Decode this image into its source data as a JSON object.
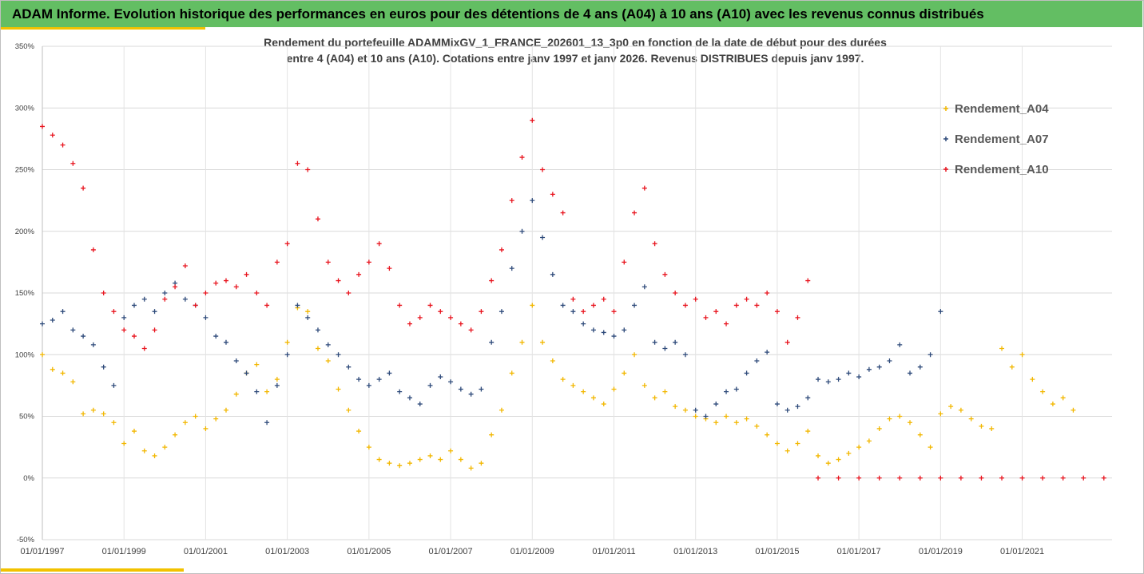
{
  "banner": {
    "title": "ADAM Informe. Evolution historique des performances en euros pour des détentions de 4 ans (A04) à 10 ans (A10) avec les revenus connus distribués"
  },
  "colors": {
    "banner": "#63be63",
    "accent": "#f2c200",
    "A04": "#f2b700",
    "A07": "#2e4a7a",
    "A10": "#e8141e"
  },
  "chart_data": {
    "type": "scatter",
    "title_line1": "Rendement du portefeuille ADAMMixGV_1_FRANCE_202601_13_3p0 en fonction de la date de début pour des durées",
    "title_line2": "entre 4 (A04) et 10 ans (A10). Cotations entre janv 1997 et janv 2026. Revenus DISTRIBUES depuis janv 1997.",
    "x_range": [
      1997.0,
      2023.2
    ],
    "y_range": [
      -50,
      350
    ],
    "y_ticks": [
      "-50%",
      "0%",
      "50%",
      "100%",
      "150%",
      "200%",
      "250%",
      "300%",
      "350%"
    ],
    "y_tick_values": [
      -50,
      0,
      50,
      100,
      150,
      200,
      250,
      300,
      350
    ],
    "x_ticks": [
      "01/01/1997",
      "01/01/1999",
      "01/01/2001",
      "01/01/2003",
      "01/01/2005",
      "01/01/2007",
      "01/01/2009",
      "01/01/2011",
      "01/01/2013",
      "01/01/2015",
      "01/01/2017",
      "01/01/2019",
      "01/01/2021"
    ],
    "x_tick_values": [
      1997,
      1999,
      2001,
      2003,
      2005,
      2007,
      2009,
      2011,
      2013,
      2015,
      2017,
      2019,
      2021
    ],
    "legend_position": "right",
    "series": [
      {
        "name": "Rendement_A04",
        "key": "A04",
        "points": [
          [
            1997.0,
            100
          ],
          [
            1997.25,
            88
          ],
          [
            1997.5,
            85
          ],
          [
            1997.75,
            78
          ],
          [
            1998.0,
            52
          ],
          [
            1998.25,
            55
          ],
          [
            1998.5,
            52
          ],
          [
            1998.75,
            45
          ],
          [
            1999.0,
            28
          ],
          [
            1999.25,
            38
          ],
          [
            1999.5,
            22
          ],
          [
            1999.75,
            18
          ],
          [
            2000.0,
            25
          ],
          [
            2000.25,
            35
          ],
          [
            2000.5,
            45
          ],
          [
            2000.75,
            50
          ],
          [
            2001.0,
            40
          ],
          [
            2001.25,
            48
          ],
          [
            2001.5,
            55
          ],
          [
            2001.75,
            68
          ],
          [
            2002.0,
            85
          ],
          [
            2002.25,
            92
          ],
          [
            2002.5,
            70
          ],
          [
            2002.75,
            80
          ],
          [
            2003.0,
            110
          ],
          [
            2003.25,
            138
          ],
          [
            2003.5,
            135
          ],
          [
            2003.75,
            105
          ],
          [
            2004.0,
            95
          ],
          [
            2004.25,
            72
          ],
          [
            2004.5,
            55
          ],
          [
            2004.75,
            38
          ],
          [
            2005.0,
            25
          ],
          [
            2005.25,
            15
          ],
          [
            2005.5,
            12
          ],
          [
            2005.75,
            10
          ],
          [
            2006.0,
            12
          ],
          [
            2006.25,
            15
          ],
          [
            2006.5,
            18
          ],
          [
            2006.75,
            15
          ],
          [
            2007.0,
            22
          ],
          [
            2007.25,
            15
          ],
          [
            2007.5,
            8
          ],
          [
            2007.75,
            12
          ],
          [
            2008.0,
            35
          ],
          [
            2008.25,
            55
          ],
          [
            2008.5,
            85
          ],
          [
            2008.75,
            110
          ],
          [
            2009.0,
            140
          ],
          [
            2009.25,
            110
          ],
          [
            2009.5,
            95
          ],
          [
            2009.75,
            80
          ],
          [
            2010.0,
            75
          ],
          [
            2010.25,
            70
          ],
          [
            2010.5,
            65
          ],
          [
            2010.75,
            60
          ],
          [
            2011.0,
            72
          ],
          [
            2011.25,
            85
          ],
          [
            2011.5,
            100
          ],
          [
            2011.75,
            75
          ],
          [
            2012.0,
            65
          ],
          [
            2012.25,
            70
          ],
          [
            2012.5,
            58
          ],
          [
            2012.75,
            55
          ],
          [
            2013.0,
            50
          ],
          [
            2013.25,
            48
          ],
          [
            2013.5,
            45
          ],
          [
            2013.75,
            50
          ],
          [
            2014.0,
            45
          ],
          [
            2014.25,
            48
          ],
          [
            2014.5,
            42
          ],
          [
            2014.75,
            35
          ],
          [
            2015.0,
            28
          ],
          [
            2015.25,
            22
          ],
          [
            2015.5,
            28
          ],
          [
            2015.75,
            38
          ],
          [
            2016.0,
            18
          ],
          [
            2016.25,
            12
          ],
          [
            2016.5,
            15
          ],
          [
            2016.75,
            20
          ],
          [
            2017.0,
            25
          ],
          [
            2017.25,
            30
          ],
          [
            2017.5,
            40
          ],
          [
            2017.75,
            48
          ],
          [
            2018.0,
            50
          ],
          [
            2018.25,
            45
          ],
          [
            2018.5,
            35
          ],
          [
            2018.75,
            25
          ],
          [
            2019.0,
            52
          ],
          [
            2019.25,
            58
          ],
          [
            2019.5,
            55
          ],
          [
            2019.75,
            48
          ],
          [
            2020.0,
            42
          ],
          [
            2020.25,
            40
          ],
          [
            2020.5,
            105
          ],
          [
            2020.75,
            90
          ],
          [
            2021.0,
            100
          ],
          [
            2021.25,
            80
          ],
          [
            2021.5,
            70
          ],
          [
            2021.75,
            60
          ],
          [
            2022.0,
            65
          ],
          [
            2022.25,
            55
          ]
        ]
      },
      {
        "name": "Rendement_A07",
        "key": "A07",
        "points": [
          [
            1997.0,
            125
          ],
          [
            1997.25,
            128
          ],
          [
            1997.5,
            135
          ],
          [
            1997.75,
            120
          ],
          [
            1998.0,
            115
          ],
          [
            1998.25,
            108
          ],
          [
            1998.5,
            90
          ],
          [
            1998.75,
            75
          ],
          [
            1999.0,
            130
          ],
          [
            1999.25,
            140
          ],
          [
            1999.5,
            145
          ],
          [
            1999.75,
            135
          ],
          [
            2000.0,
            150
          ],
          [
            2000.25,
            158
          ],
          [
            2000.5,
            145
          ],
          [
            2000.75,
            140
          ],
          [
            2001.0,
            130
          ],
          [
            2001.25,
            115
          ],
          [
            2001.5,
            110
          ],
          [
            2001.75,
            95
          ],
          [
            2002.0,
            85
          ],
          [
            2002.25,
            70
          ],
          [
            2002.5,
            45
          ],
          [
            2002.75,
            75
          ],
          [
            2003.0,
            100
          ],
          [
            2003.25,
            140
          ],
          [
            2003.5,
            130
          ],
          [
            2003.75,
            120
          ],
          [
            2004.0,
            108
          ],
          [
            2004.25,
            100
          ],
          [
            2004.5,
            90
          ],
          [
            2004.75,
            80
          ],
          [
            2005.0,
            75
          ],
          [
            2005.25,
            80
          ],
          [
            2005.5,
            85
          ],
          [
            2005.75,
            70
          ],
          [
            2006.0,
            65
          ],
          [
            2006.25,
            60
          ],
          [
            2006.5,
            75
          ],
          [
            2006.75,
            82
          ],
          [
            2007.0,
            78
          ],
          [
            2007.25,
            72
          ],
          [
            2007.5,
            68
          ],
          [
            2007.75,
            72
          ],
          [
            2008.0,
            110
          ],
          [
            2008.25,
            135
          ],
          [
            2008.5,
            170
          ],
          [
            2008.75,
            200
          ],
          [
            2009.0,
            225
          ],
          [
            2009.25,
            195
          ],
          [
            2009.5,
            165
          ],
          [
            2009.75,
            140
          ],
          [
            2010.0,
            135
          ],
          [
            2010.25,
            125
          ],
          [
            2010.5,
            120
          ],
          [
            2010.75,
            118
          ],
          [
            2011.0,
            115
          ],
          [
            2011.25,
            120
          ],
          [
            2011.5,
            140
          ],
          [
            2011.75,
            155
          ],
          [
            2012.0,
            110
          ],
          [
            2012.25,
            105
          ],
          [
            2012.5,
            110
          ],
          [
            2012.75,
            100
          ],
          [
            2013.0,
            55
          ],
          [
            2013.25,
            50
          ],
          [
            2013.5,
            60
          ],
          [
            2013.75,
            70
          ],
          [
            2014.0,
            72
          ],
          [
            2014.25,
            85
          ],
          [
            2014.5,
            95
          ],
          [
            2014.75,
            102
          ],
          [
            2015.0,
            60
          ],
          [
            2015.25,
            55
          ],
          [
            2015.5,
            58
          ],
          [
            2015.75,
            65
          ],
          [
            2016.0,
            80
          ],
          [
            2016.25,
            78
          ],
          [
            2016.5,
            80
          ],
          [
            2016.75,
            85
          ],
          [
            2017.0,
            82
          ],
          [
            2017.25,
            88
          ],
          [
            2017.5,
            90
          ],
          [
            2017.75,
            95
          ],
          [
            2018.0,
            108
          ],
          [
            2018.25,
            85
          ],
          [
            2018.5,
            90
          ],
          [
            2018.75,
            100
          ],
          [
            2019.0,
            135
          ]
        ]
      },
      {
        "name": "Rendement_A10",
        "key": "A10",
        "points": [
          [
            1997.0,
            285
          ],
          [
            1997.25,
            278
          ],
          [
            1997.5,
            270
          ],
          [
            1997.75,
            255
          ],
          [
            1998.0,
            235
          ],
          [
            1998.25,
            185
          ],
          [
            1998.5,
            150
          ],
          [
            1998.75,
            135
          ],
          [
            1999.0,
            120
          ],
          [
            1999.25,
            115
          ],
          [
            1999.5,
            105
          ],
          [
            1999.75,
            120
          ],
          [
            2000.0,
            145
          ],
          [
            2000.25,
            155
          ],
          [
            2000.5,
            172
          ],
          [
            2000.75,
            140
          ],
          [
            2001.0,
            150
          ],
          [
            2001.25,
            158
          ],
          [
            2001.5,
            160
          ],
          [
            2001.75,
            155
          ],
          [
            2002.0,
            165
          ],
          [
            2002.25,
            150
          ],
          [
            2002.5,
            140
          ],
          [
            2002.75,
            175
          ],
          [
            2003.0,
            190
          ],
          [
            2003.25,
            255
          ],
          [
            2003.5,
            250
          ],
          [
            2003.75,
            210
          ],
          [
            2004.0,
            175
          ],
          [
            2004.25,
            160
          ],
          [
            2004.5,
            150
          ],
          [
            2004.75,
            165
          ],
          [
            2005.0,
            175
          ],
          [
            2005.25,
            190
          ],
          [
            2005.5,
            170
          ],
          [
            2005.75,
            140
          ],
          [
            2006.0,
            125
          ],
          [
            2006.25,
            130
          ],
          [
            2006.5,
            140
          ],
          [
            2006.75,
            135
          ],
          [
            2007.0,
            130
          ],
          [
            2007.25,
            125
          ],
          [
            2007.5,
            120
          ],
          [
            2007.75,
            135
          ],
          [
            2008.0,
            160
          ],
          [
            2008.25,
            185
          ],
          [
            2008.5,
            225
          ],
          [
            2008.75,
            260
          ],
          [
            2009.0,
            290
          ],
          [
            2009.25,
            250
          ],
          [
            2009.5,
            230
          ],
          [
            2009.75,
            215
          ],
          [
            2010.0,
            145
          ],
          [
            2010.25,
            135
          ],
          [
            2010.5,
            140
          ],
          [
            2010.75,
            145
          ],
          [
            2011.0,
            135
          ],
          [
            2011.25,
            175
          ],
          [
            2011.5,
            215
          ],
          [
            2011.75,
            235
          ],
          [
            2012.0,
            190
          ],
          [
            2012.25,
            165
          ],
          [
            2012.5,
            150
          ],
          [
            2012.75,
            140
          ],
          [
            2013.0,
            145
          ],
          [
            2013.25,
            130
          ],
          [
            2013.5,
            135
          ],
          [
            2013.75,
            125
          ],
          [
            2014.0,
            140
          ],
          [
            2014.25,
            145
          ],
          [
            2014.5,
            140
          ],
          [
            2014.75,
            150
          ],
          [
            2015.0,
            135
          ],
          [
            2015.25,
            110
          ],
          [
            2015.5,
            130
          ],
          [
            2015.75,
            160
          ],
          [
            2016.0,
            0
          ],
          [
            2016.5,
            0
          ],
          [
            2017.0,
            0
          ],
          [
            2017.5,
            0
          ],
          [
            2018.0,
            0
          ],
          [
            2018.5,
            0
          ],
          [
            2019.0,
            0
          ],
          [
            2019.5,
            0
          ],
          [
            2020.0,
            0
          ],
          [
            2020.5,
            0
          ],
          [
            2021.0,
            0
          ],
          [
            2021.5,
            0
          ],
          [
            2022.0,
            0
          ],
          [
            2022.5,
            0
          ],
          [
            2023.0,
            0
          ]
        ]
      }
    ]
  }
}
